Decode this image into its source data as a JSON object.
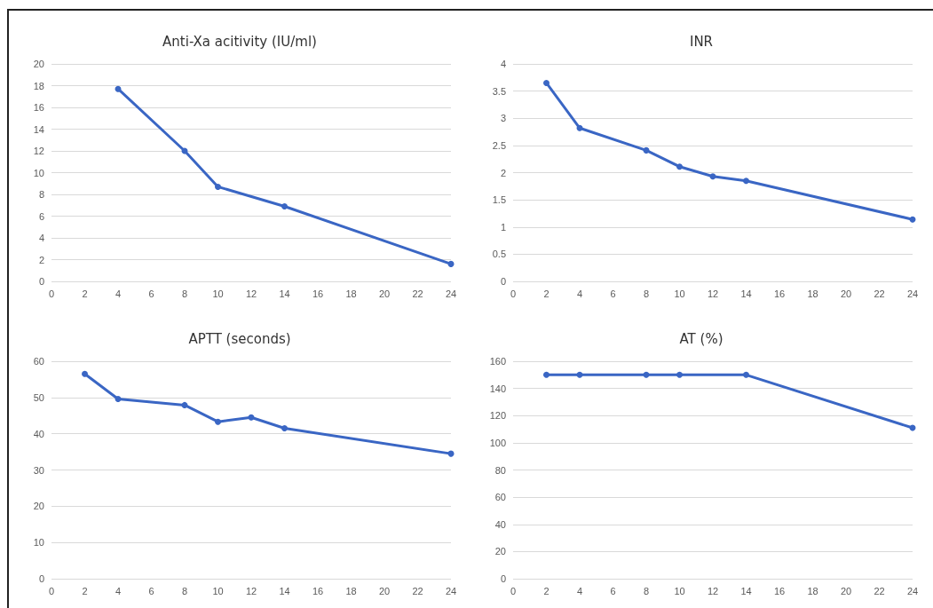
{
  "chart_data": [
    {
      "type": "line",
      "title": "Anti-Xa acitivity (IU/ml)",
      "x": [
        4,
        8,
        10,
        14,
        24
      ],
      "series": [
        {
          "color": "#3a66c4",
          "values": [
            17.7,
            12,
            8.7,
            6.9,
            1.6
          ]
        }
      ],
      "xlim": [
        0,
        24
      ],
      "xticks": [
        0,
        2,
        4,
        6,
        8,
        10,
        12,
        14,
        16,
        18,
        20,
        22,
        24
      ],
      "ylim": [
        0,
        20
      ],
      "yticks": [
        0,
        2,
        4,
        6,
        8,
        10,
        12,
        14,
        16,
        18,
        20
      ],
      "grid": "y",
      "marker": "circle",
      "line_style": "solid"
    },
    {
      "type": "line",
      "title": "INR",
      "x": [
        2,
        4,
        8,
        10,
        12,
        14,
        24
      ],
      "series": [
        {
          "color": "#3a66c4",
          "values": [
            3.65,
            2.82,
            2.41,
            2.11,
            1.93,
            1.85,
            1.14
          ]
        }
      ],
      "xlim": [
        0,
        24
      ],
      "xticks": [
        0,
        2,
        4,
        6,
        8,
        10,
        12,
        14,
        16,
        18,
        20,
        22,
        24
      ],
      "ylim": [
        0,
        4
      ],
      "yticks": [
        0,
        0.5,
        1,
        1.5,
        2,
        2.5,
        3,
        3.5,
        4
      ],
      "grid": "y",
      "marker": "circle",
      "line_style": "solid"
    },
    {
      "type": "line",
      "title": "APTT (seconds)",
      "x": [
        2,
        4,
        8,
        10,
        12,
        14,
        24
      ],
      "series": [
        {
          "color": "#3a66c4",
          "values": [
            56.5,
            49.6,
            47.9,
            43.3,
            44.5,
            41.5,
            34.5
          ]
        }
      ],
      "xlim": [
        0,
        24
      ],
      "xticks": [
        0,
        2,
        4,
        6,
        8,
        10,
        12,
        14,
        16,
        18,
        20,
        22,
        24
      ],
      "ylim": [
        0,
        60
      ],
      "yticks": [
        0,
        10,
        20,
        30,
        40,
        50,
        60
      ],
      "grid": "y",
      "marker": "circle",
      "line_style": "solid"
    },
    {
      "type": "line",
      "title": "AT (%)",
      "x": [
        2,
        4,
        8,
        10,
        14,
        24
      ],
      "series": [
        {
          "color": "#3a66c4",
          "values": [
            150,
            150,
            150,
            150,
            150,
            111
          ]
        }
      ],
      "xlim": [
        0,
        24
      ],
      "xticks": [
        0,
        2,
        4,
        6,
        8,
        10,
        12,
        14,
        16,
        18,
        20,
        22,
        24
      ],
      "ylim": [
        0,
        160
      ],
      "yticks": [
        0,
        20,
        40,
        60,
        80,
        100,
        120,
        140,
        160
      ],
      "grid": "y",
      "marker": "circle",
      "line_style": "solid"
    }
  ]
}
